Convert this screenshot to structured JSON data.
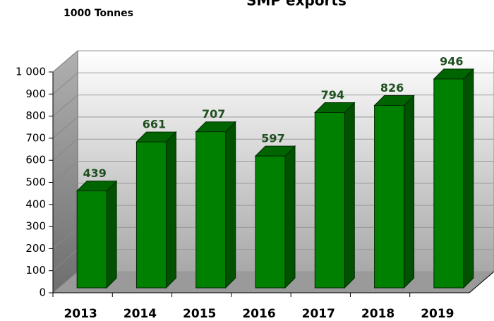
{
  "chart_data": {
    "type": "bar3d",
    "title": "SMP exports",
    "y_label": "1000 Tonnes",
    "categories": [
      "2013",
      "2014",
      "2015",
      "2016",
      "2017",
      "2018",
      "2019"
    ],
    "values": [
      439,
      661,
      707,
      597,
      794,
      826,
      946
    ],
    "color": "#008000",
    "ylim": [
      0,
      1000
    ],
    "yticks": [
      0,
      100,
      200,
      300,
      400,
      500,
      600,
      700,
      800,
      900,
      {
        "value": 1000,
        "label": "1 000"
      }
    ],
    "grid": true
  }
}
